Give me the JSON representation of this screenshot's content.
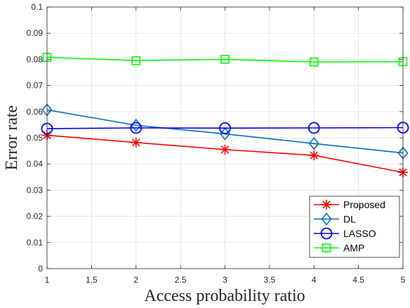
{
  "chart_data": {
    "type": "line",
    "xlabel": "Access probability ratio",
    "ylabel": "Error rate",
    "xlim": [
      1,
      5
    ],
    "ylim": [
      0,
      0.1
    ],
    "xticks": [
      "1",
      "1.5",
      "2",
      "2.5",
      "3",
      "3.5",
      "4",
      "4.5",
      "5"
    ],
    "yticks": [
      "0",
      "0.01",
      "0.02",
      "0.03",
      "0.04",
      "0.05",
      "0.06",
      "0.07",
      "0.08",
      "0.09",
      "0.1"
    ],
    "grid": true,
    "legend_position": "bottom-right",
    "x": [
      1,
      2,
      3,
      4,
      5
    ],
    "series": [
      {
        "name": "Proposed",
        "values": [
          0.051,
          0.0482,
          0.0455,
          0.0433,
          0.0368
        ],
        "color": "#ff0000",
        "marker": "asterisk"
      },
      {
        "name": "DL",
        "values": [
          0.0607,
          0.0548,
          0.0515,
          0.0478,
          0.0442
        ],
        "color": "#0072bd",
        "marker": "diamond"
      },
      {
        "name": "LASSO",
        "values": [
          0.0535,
          0.0538,
          0.0537,
          0.0538,
          0.0539
        ],
        "color": "#0000ff",
        "marker": "circle"
      },
      {
        "name": "AMP",
        "values": [
          0.0808,
          0.0795,
          0.08,
          0.079,
          0.0791
        ],
        "color": "#00ff00",
        "marker": "square"
      }
    ]
  }
}
